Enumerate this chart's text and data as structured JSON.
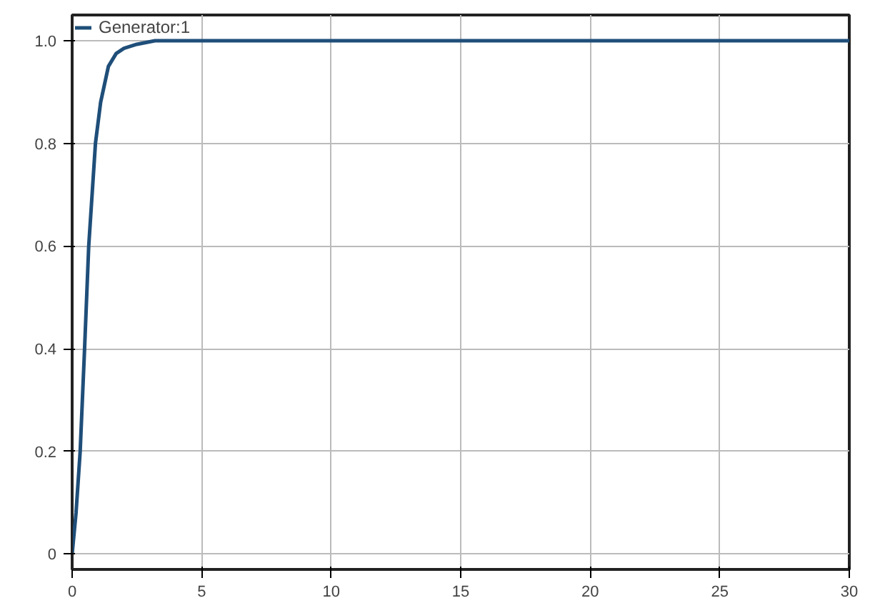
{
  "chart_data": {
    "type": "line",
    "x": [
      0,
      0.15,
      0.31,
      0.48,
      0.64,
      0.9,
      1.1,
      1.4,
      1.7,
      2,
      2.5,
      3.2,
      5,
      10,
      15,
      20,
      25,
      30
    ],
    "series": [
      {
        "name": "Generator:1",
        "color": "#1f4e79",
        "values": [
          0,
          0.08,
          0.2,
          0.4,
          0.6,
          0.8,
          0.88,
          0.95,
          0.975,
          0.985,
          0.993,
          1.0,
          1.0,
          1.0,
          1.0,
          1.0,
          1.0,
          1.0
        ]
      }
    ],
    "xlim": [
      0,
      30
    ],
    "ylim": [
      -0.03,
      1.05
    ],
    "xticks": [
      0,
      5,
      10,
      15,
      20,
      25,
      30
    ],
    "yticks": [
      0,
      0.2,
      0.4,
      0.6,
      0.8,
      {
        "value": 1,
        "label": "1.0"
      }
    ],
    "grid": true,
    "legend": "top left",
    "marker": "none",
    "line_style": "solid"
  }
}
